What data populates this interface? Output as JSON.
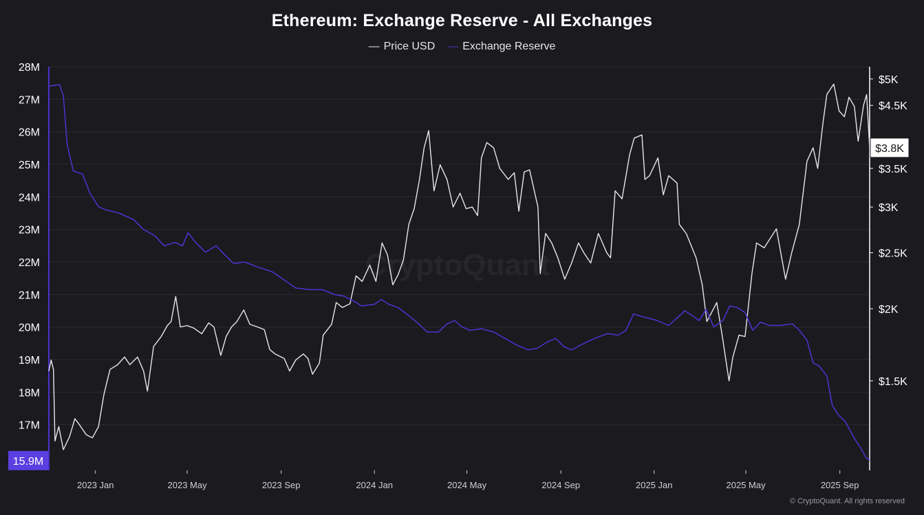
{
  "colors": {
    "background": "#1a1a1f",
    "price": "#e8e8ec",
    "reserve": "#4a33c8",
    "grid": "#2a2a31",
    "reserve_badge": "#5b3fe0",
    "price_badge": "#ffffff"
  },
  "legend_marker": "—",
  "footer": "© CryptoQuant. All rights reserved",
  "watermark": "CryptoQuant",
  "chart_data": {
    "type": "line",
    "title": "Ethereum: Exchange Reserve - All Exchanges",
    "legend": [
      "Price USD",
      "Exchange Reserve"
    ],
    "grid": true,
    "x_range": [
      "2022-11-01",
      "2025-10-10"
    ],
    "x_ticks": [
      {
        "date": "2023-01-01",
        "label": "2023 Jan"
      },
      {
        "date": "2023-05-01",
        "label": "2023 May"
      },
      {
        "date": "2023-09-01",
        "label": "2023 Sep"
      },
      {
        "date": "2024-01-01",
        "label": "2024 Jan"
      },
      {
        "date": "2024-05-01",
        "label": "2024 May"
      },
      {
        "date": "2024-09-01",
        "label": "2024 Sep"
      },
      {
        "date": "2025-01-01",
        "label": "2025 Jan"
      },
      {
        "date": "2025-05-01",
        "label": "2025 May"
      },
      {
        "date": "2025-09-01",
        "label": "2025 Sep"
      }
    ],
    "y_left": {
      "label": "",
      "range": [
        15600000,
        28000000
      ],
      "ticks": [
        {
          "value": 28000000,
          "label": "28M"
        },
        {
          "value": 27000000,
          "label": "27M"
        },
        {
          "value": 26000000,
          "label": "26M"
        },
        {
          "value": 25000000,
          "label": "25M"
        },
        {
          "value": 24000000,
          "label": "24M"
        },
        {
          "value": 23000000,
          "label": "23M"
        },
        {
          "value": 22000000,
          "label": "22M"
        },
        {
          "value": 21000000,
          "label": "21M"
        },
        {
          "value": 20000000,
          "label": "20M"
        },
        {
          "value": 19000000,
          "label": "19M"
        },
        {
          "value": 18000000,
          "label": "18M"
        },
        {
          "value": 17000000,
          "label": "17M"
        }
      ],
      "current_label": "15.9M",
      "current_value": 15900000
    },
    "y_right": {
      "label": "",
      "scale": "log",
      "range": [
        1050,
        5250
      ],
      "ticks": [
        {
          "value": 5000,
          "label": "$5K"
        },
        {
          "value": 4500,
          "label": "$4.5K"
        },
        {
          "value": 3500,
          "label": "$3.5K"
        },
        {
          "value": 3000,
          "label": "$3K"
        },
        {
          "value": 2500,
          "label": "$2.5K"
        },
        {
          "value": 2000,
          "label": "$2K"
        },
        {
          "value": 1500,
          "label": "$1.5K"
        }
      ],
      "current_label": "$3.8K",
      "current_value": 3800
    },
    "series": [
      {
        "name": "Price USD",
        "axis": "right",
        "points": [
          [
            "2022-11-01",
            1560
          ],
          [
            "2022-11-04",
            1630
          ],
          [
            "2022-11-07",
            1570
          ],
          [
            "2022-11-09",
            1180
          ],
          [
            "2022-11-14",
            1250
          ],
          [
            "2022-11-20",
            1140
          ],
          [
            "2022-11-28",
            1200
          ],
          [
            "2022-12-05",
            1290
          ],
          [
            "2022-12-10",
            1265
          ],
          [
            "2022-12-20",
            1210
          ],
          [
            "2022-12-28",
            1195
          ],
          [
            "2023-01-05",
            1250
          ],
          [
            "2023-01-12",
            1420
          ],
          [
            "2023-01-20",
            1570
          ],
          [
            "2023-01-30",
            1600
          ],
          [
            "2023-02-08",
            1650
          ],
          [
            "2023-02-15",
            1600
          ],
          [
            "2023-02-25",
            1650
          ],
          [
            "2023-03-05",
            1560
          ],
          [
            "2023-03-10",
            1440
          ],
          [
            "2023-03-18",
            1720
          ],
          [
            "2023-03-28",
            1790
          ],
          [
            "2023-04-05",
            1870
          ],
          [
            "2023-04-10",
            1900
          ],
          [
            "2023-04-16",
            2100
          ],
          [
            "2023-04-22",
            1860
          ],
          [
            "2023-05-01",
            1870
          ],
          [
            "2023-05-10",
            1850
          ],
          [
            "2023-05-20",
            1810
          ],
          [
            "2023-05-29",
            1890
          ],
          [
            "2023-06-05",
            1860
          ],
          [
            "2023-06-14",
            1660
          ],
          [
            "2023-06-21",
            1790
          ],
          [
            "2023-06-28",
            1860
          ],
          [
            "2023-07-05",
            1900
          ],
          [
            "2023-07-14",
            1990
          ],
          [
            "2023-07-22",
            1880
          ],
          [
            "2023-08-01",
            1860
          ],
          [
            "2023-08-10",
            1840
          ],
          [
            "2023-08-17",
            1700
          ],
          [
            "2023-08-24",
            1670
          ],
          [
            "2023-09-05",
            1640
          ],
          [
            "2023-09-12",
            1560
          ],
          [
            "2023-09-20",
            1630
          ],
          [
            "2023-09-30",
            1670
          ],
          [
            "2023-10-06",
            1640
          ],
          [
            "2023-10-12",
            1540
          ],
          [
            "2023-10-21",
            1610
          ],
          [
            "2023-10-26",
            1800
          ],
          [
            "2023-11-06",
            1880
          ],
          [
            "2023-11-12",
            2050
          ],
          [
            "2023-11-20",
            2010
          ],
          [
            "2023-11-30",
            2040
          ],
          [
            "2023-12-08",
            2280
          ],
          [
            "2023-12-16",
            2230
          ],
          [
            "2023-12-26",
            2380
          ],
          [
            "2024-01-03",
            2230
          ],
          [
            "2024-01-11",
            2600
          ],
          [
            "2024-01-18",
            2480
          ],
          [
            "2024-01-25",
            2200
          ],
          [
            "2024-02-01",
            2290
          ],
          [
            "2024-02-08",
            2430
          ],
          [
            "2024-02-15",
            2800
          ],
          [
            "2024-02-22",
            2980
          ],
          [
            "2024-02-29",
            3350
          ],
          [
            "2024-03-06",
            3800
          ],
          [
            "2024-03-12",
            4070
          ],
          [
            "2024-03-19",
            3200
          ],
          [
            "2024-03-27",
            3550
          ],
          [
            "2024-04-05",
            3350
          ],
          [
            "2024-04-13",
            3000
          ],
          [
            "2024-04-22",
            3170
          ],
          [
            "2024-04-30",
            2980
          ],
          [
            "2024-05-08",
            3000
          ],
          [
            "2024-05-15",
            2900
          ],
          [
            "2024-05-20",
            3650
          ],
          [
            "2024-05-27",
            3880
          ],
          [
            "2024-06-05",
            3800
          ],
          [
            "2024-06-13",
            3500
          ],
          [
            "2024-06-24",
            3350
          ],
          [
            "2024-07-02",
            3440
          ],
          [
            "2024-07-08",
            2950
          ],
          [
            "2024-07-15",
            3450
          ],
          [
            "2024-07-22",
            3480
          ],
          [
            "2024-08-02",
            3000
          ],
          [
            "2024-08-05",
            2300
          ],
          [
            "2024-08-12",
            2700
          ],
          [
            "2024-08-20",
            2600
          ],
          [
            "2024-08-28",
            2450
          ],
          [
            "2024-09-06",
            2250
          ],
          [
            "2024-09-15",
            2400
          ],
          [
            "2024-09-24",
            2600
          ],
          [
            "2024-10-01",
            2500
          ],
          [
            "2024-10-10",
            2400
          ],
          [
            "2024-10-20",
            2700
          ],
          [
            "2024-10-31",
            2500
          ],
          [
            "2024-11-05",
            2450
          ],
          [
            "2024-11-11",
            3200
          ],
          [
            "2024-11-20",
            3100
          ],
          [
            "2024-11-30",
            3700
          ],
          [
            "2024-12-06",
            3950
          ],
          [
            "2024-12-16",
            4000
          ],
          [
            "2024-12-20",
            3350
          ],
          [
            "2024-12-26",
            3400
          ],
          [
            "2025-01-06",
            3650
          ],
          [
            "2025-01-13",
            3150
          ],
          [
            "2025-01-20",
            3400
          ],
          [
            "2025-01-31",
            3300
          ],
          [
            "2025-02-03",
            2800
          ],
          [
            "2025-02-12",
            2700
          ],
          [
            "2025-02-25",
            2450
          ],
          [
            "2025-03-05",
            2200
          ],
          [
            "2025-03-11",
            1900
          ],
          [
            "2025-03-24",
            2050
          ],
          [
            "2025-03-31",
            1800
          ],
          [
            "2025-04-09",
            1500
          ],
          [
            "2025-04-14",
            1650
          ],
          [
            "2025-04-22",
            1800
          ],
          [
            "2025-04-30",
            1790
          ],
          [
            "2025-05-09",
            2300
          ],
          [
            "2025-05-15",
            2600
          ],
          [
            "2025-05-25",
            2550
          ],
          [
            "2025-06-10",
            2750
          ],
          [
            "2025-06-22",
            2250
          ],
          [
            "2025-06-30",
            2500
          ],
          [
            "2025-07-10",
            2800
          ],
          [
            "2025-07-20",
            3600
          ],
          [
            "2025-07-28",
            3800
          ],
          [
            "2025-08-03",
            3500
          ],
          [
            "2025-08-10",
            4200
          ],
          [
            "2025-08-15",
            4700
          ],
          [
            "2025-08-24",
            4900
          ],
          [
            "2025-08-31",
            4400
          ],
          [
            "2025-09-07",
            4300
          ],
          [
            "2025-09-13",
            4650
          ],
          [
            "2025-09-20",
            4480
          ],
          [
            "2025-09-25",
            3900
          ],
          [
            "2025-10-02",
            4500
          ],
          [
            "2025-10-06",
            4700
          ],
          [
            "2025-10-10",
            3800
          ]
        ]
      },
      {
        "name": "Exchange Reserve",
        "axis": "left",
        "points": [
          [
            "2022-11-01",
            27400000
          ],
          [
            "2022-11-15",
            27450000
          ],
          [
            "2022-11-20",
            27100000
          ],
          [
            "2022-11-25",
            25600000
          ],
          [
            "2022-12-03",
            24800000
          ],
          [
            "2022-12-15",
            24700000
          ],
          [
            "2022-12-25",
            24100000
          ],
          [
            "2023-01-05",
            23700000
          ],
          [
            "2023-01-15",
            23600000
          ],
          [
            "2023-02-01",
            23500000
          ],
          [
            "2023-02-20",
            23300000
          ],
          [
            "2023-03-05",
            23000000
          ],
          [
            "2023-03-20",
            22800000
          ],
          [
            "2023-04-01",
            22500000
          ],
          [
            "2023-04-15",
            22600000
          ],
          [
            "2023-04-25",
            22500000
          ],
          [
            "2023-05-02",
            22900000
          ],
          [
            "2023-05-12",
            22600000
          ],
          [
            "2023-05-25",
            22300000
          ],
          [
            "2023-06-08",
            22500000
          ],
          [
            "2023-06-20",
            22200000
          ],
          [
            "2023-07-01",
            21950000
          ],
          [
            "2023-07-15",
            22000000
          ],
          [
            "2023-08-01",
            21850000
          ],
          [
            "2023-08-20",
            21700000
          ],
          [
            "2023-09-05",
            21450000
          ],
          [
            "2023-09-20",
            21200000
          ],
          [
            "2023-10-10",
            21150000
          ],
          [
            "2023-10-25",
            21150000
          ],
          [
            "2023-11-10",
            21000000
          ],
          [
            "2023-11-22",
            20950000
          ],
          [
            "2023-12-05",
            20800000
          ],
          [
            "2023-12-15",
            20650000
          ],
          [
            "2024-01-01",
            20700000
          ],
          [
            "2024-01-10",
            20850000
          ],
          [
            "2024-01-20",
            20700000
          ],
          [
            "2024-02-01",
            20600000
          ],
          [
            "2024-02-15",
            20350000
          ],
          [
            "2024-02-28",
            20100000
          ],
          [
            "2024-03-10",
            19850000
          ],
          [
            "2024-03-25",
            19850000
          ],
          [
            "2024-04-05",
            20100000
          ],
          [
            "2024-04-15",
            20200000
          ],
          [
            "2024-04-25",
            20000000
          ],
          [
            "2024-05-05",
            19900000
          ],
          [
            "2024-05-20",
            19950000
          ],
          [
            "2024-06-05",
            19850000
          ],
          [
            "2024-06-20",
            19650000
          ],
          [
            "2024-07-05",
            19450000
          ],
          [
            "2024-07-20",
            19300000
          ],
          [
            "2024-08-01",
            19350000
          ],
          [
            "2024-08-15",
            19550000
          ],
          [
            "2024-08-25",
            19650000
          ],
          [
            "2024-09-05",
            19400000
          ],
          [
            "2024-09-15",
            19300000
          ],
          [
            "2024-10-01",
            19500000
          ],
          [
            "2024-10-15",
            19650000
          ],
          [
            "2024-11-01",
            19800000
          ],
          [
            "2024-11-15",
            19750000
          ],
          [
            "2024-11-25",
            19900000
          ],
          [
            "2024-12-05",
            20400000
          ],
          [
            "2024-12-20",
            20300000
          ],
          [
            "2025-01-05",
            20200000
          ],
          [
            "2025-01-20",
            20050000
          ],
          [
            "2025-02-01",
            20300000
          ],
          [
            "2025-02-10",
            20500000
          ],
          [
            "2025-02-20",
            20350000
          ],
          [
            "2025-03-01",
            20200000
          ],
          [
            "2025-03-10",
            20550000
          ],
          [
            "2025-03-20",
            20000000
          ],
          [
            "2025-04-01",
            20200000
          ],
          [
            "2025-04-10",
            20650000
          ],
          [
            "2025-04-20",
            20600000
          ],
          [
            "2025-04-30",
            20450000
          ],
          [
            "2025-05-10",
            19900000
          ],
          [
            "2025-05-20",
            20150000
          ],
          [
            "2025-06-01",
            20050000
          ],
          [
            "2025-06-15",
            20050000
          ],
          [
            "2025-07-01",
            20100000
          ],
          [
            "2025-07-10",
            19900000
          ],
          [
            "2025-07-20",
            19600000
          ],
          [
            "2025-07-28",
            18900000
          ],
          [
            "2025-08-05",
            18800000
          ],
          [
            "2025-08-15",
            18500000
          ],
          [
            "2025-08-22",
            17600000
          ],
          [
            "2025-08-30",
            17300000
          ],
          [
            "2025-09-08",
            17100000
          ],
          [
            "2025-09-15",
            16800000
          ],
          [
            "2025-09-22",
            16500000
          ],
          [
            "2025-09-28",
            16300000
          ],
          [
            "2025-10-05",
            16000000
          ],
          [
            "2025-10-10",
            15900000
          ]
        ]
      }
    ]
  }
}
